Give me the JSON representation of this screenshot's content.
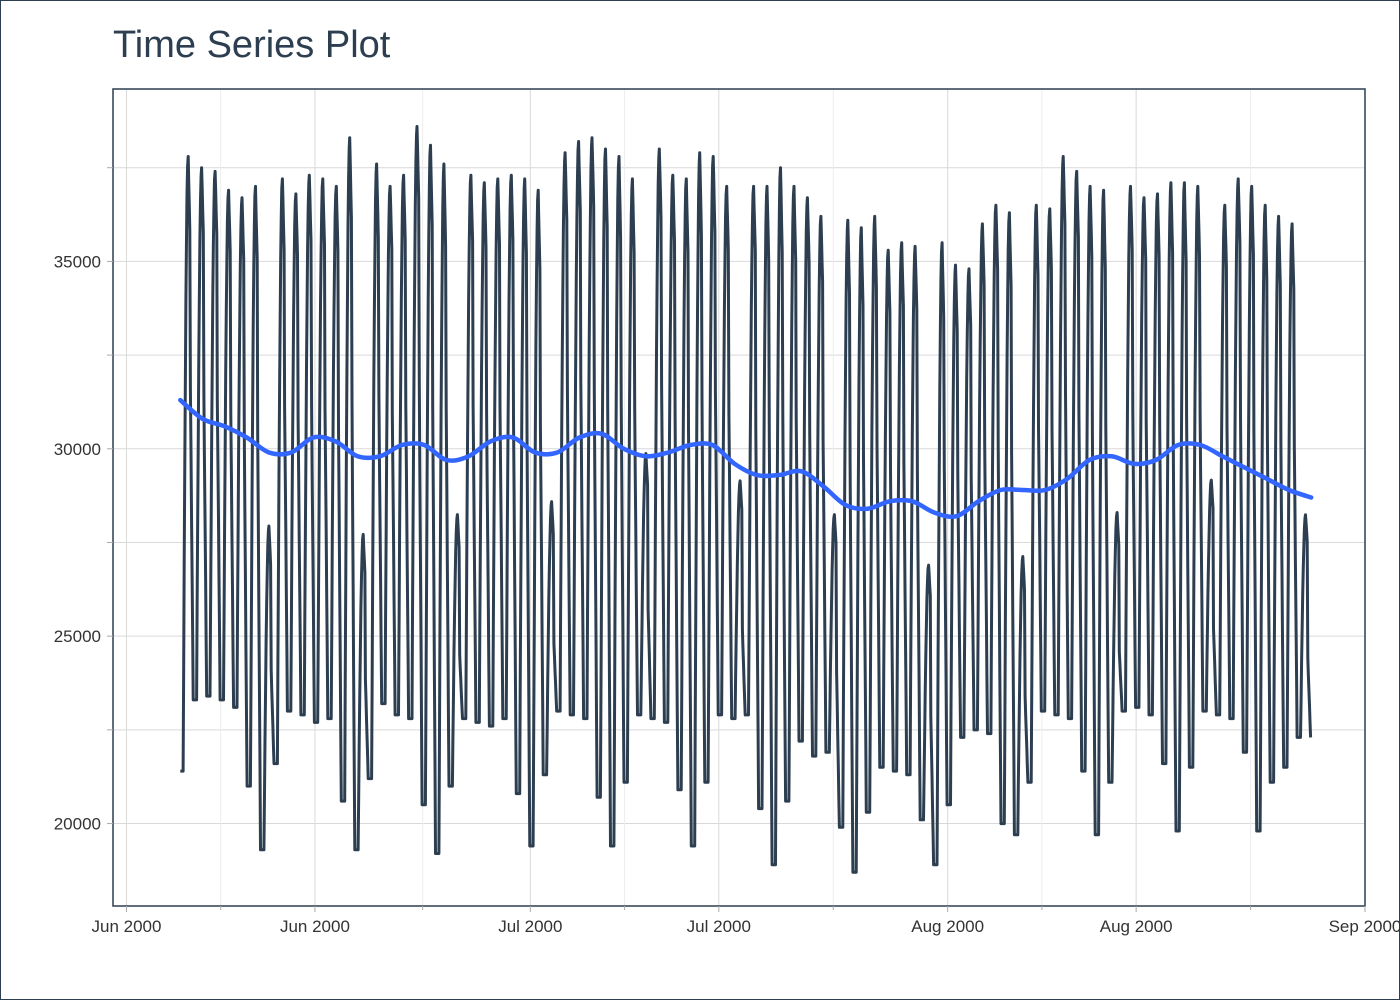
{
  "chart_data": {
    "type": "line",
    "title": "Time Series Plot",
    "xlabel": "",
    "ylabel": "",
    "x_range": [
      "2000-05-31",
      "2000-09-01"
    ],
    "ylim": [
      17800,
      39600
    ],
    "yticks": [
      20000,
      25000,
      30000,
      35000
    ],
    "xticks": [
      {
        "date": "2000-06-01",
        "label": "Jun 2000"
      },
      {
        "date": "2000-06-15",
        "label": "Jun 2000"
      },
      {
        "date": "2000-07-01",
        "label": "Jul 2000"
      },
      {
        "date": "2000-07-15",
        "label": "Jul 2000"
      },
      {
        "date": "2000-08-01",
        "label": "Aug 2000"
      },
      {
        "date": "2000-08-15",
        "label": "Aug 2000"
      },
      {
        "date": "2000-09-01",
        "label": "Sep 2000"
      }
    ],
    "grid": true,
    "legend": "none",
    "series": [
      {
        "kind": "hourly-load",
        "color": "#2c3e50",
        "start": "2000-06-05",
        "end": "2000-08-28",
        "weekday_daily_peak": [
          37800,
          37500,
          37400,
          36900,
          36700,
          37000,
          38500,
          37200,
          36800,
          37300,
          37200,
          37000,
          38300,
          38000,
          37600,
          37000,
          37300,
          38600,
          38100,
          37600,
          37100,
          37300,
          37100,
          37200,
          37300,
          37200,
          36900,
          37500,
          37900,
          38200,
          38300,
          38000,
          37800,
          37200,
          38400,
          38000,
          37300,
          37200,
          37900,
          37800,
          37000,
          36900,
          37000,
          37000,
          37500,
          37000,
          36700,
          36200,
          36000,
          36100,
          35900,
          36200,
          35300,
          35500,
          35400,
          35200,
          35500,
          34900,
          34800,
          36000,
          36500,
          36300,
          36200,
          36500,
          36400,
          37800,
          37400,
          37000,
          36900,
          37100,
          37000,
          36700,
          36800,
          37100,
          37100,
          37000,
          36700,
          36500,
          37200,
          37000,
          36500,
          36200,
          36000,
          35500
        ],
        "daily_trough": [
          21400,
          23300,
          23400,
          23300,
          23100,
          21000,
          19300,
          21600,
          23000,
          22900,
          22700,
          22800,
          20600,
          19300,
          21200,
          23200,
          22900,
          22800,
          20500,
          19200,
          21000,
          22800,
          22700,
          22600,
          22800,
          20800,
          19400,
          21300,
          23000,
          22900,
          22800,
          20700,
          19400,
          21100,
          22900,
          22800,
          22700,
          20900,
          19400,
          21100,
          22900,
          22800,
          22900,
          20400,
          18900,
          20600,
          22200,
          21800,
          21900,
          19900,
          18700,
          20300,
          21500,
          21400,
          21300,
          20100,
          18900,
          20500,
          22300,
          22500,
          22400,
          20000,
          19700,
          21100,
          23000,
          22900,
          22800,
          21400,
          19700,
          21100,
          23000,
          23100,
          22900,
          21600,
          19800,
          21500,
          23000,
          22900,
          22800,
          21900,
          19800,
          21100,
          21500,
          22300
        ],
        "weekend_days": [
          6,
          13,
          20,
          27,
          34,
          41,
          48,
          55,
          62,
          69,
          76,
          83
        ]
      },
      {
        "kind": "smoothed-trend",
        "color": "#3366ff",
        "start": "2000-06-05",
        "end": "2000-08-28",
        "values": [
          31300,
          30800,
          30600,
          30300,
          29900,
          29900,
          30300,
          30200,
          29800,
          29800,
          30100,
          30100,
          29700,
          29800,
          30200,
          30300,
          29900,
          29900,
          30300,
          30400,
          30000,
          29800,
          29900,
          30100,
          30100,
          29600,
          29300,
          29300,
          29400,
          29000,
          28500,
          28400,
          28600,
          28600,
          28300,
          28200,
          28600,
          28900,
          28900,
          28900,
          29200,
          29700,
          29800,
          29600,
          29700,
          30100,
          30100,
          29800,
          29500,
          29200,
          28900,
          28700
        ]
      }
    ]
  }
}
